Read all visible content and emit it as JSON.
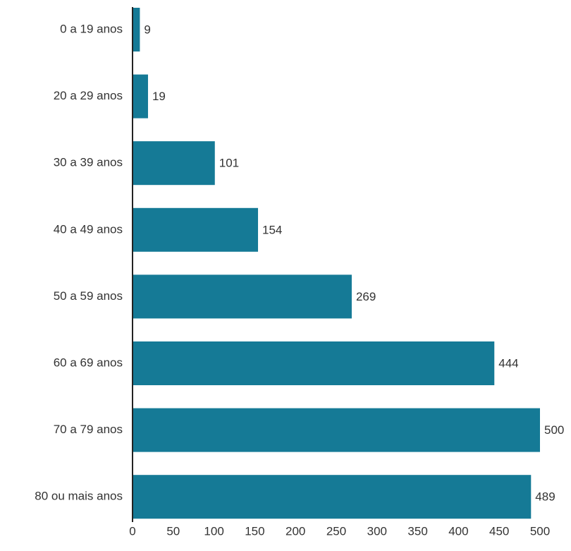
{
  "chart_data": {
    "type": "bar",
    "orientation": "horizontal",
    "categories": [
      "0 a 19 anos",
      "20 a 29 anos",
      "30 a 39 anos",
      "40 a 49 anos",
      "50 a 59 anos",
      "60 a 69 anos",
      "70 a 79 anos",
      "80 ou mais anos"
    ],
    "values": [
      9,
      19,
      101,
      154,
      269,
      444,
      500,
      489
    ],
    "data_labels": [
      "9",
      "19",
      "101",
      "154",
      "269",
      "444",
      "500",
      "489"
    ],
    "x_ticks": [
      "0",
      "50",
      "100",
      "150",
      "200",
      "250",
      "300",
      "350",
      "400",
      "450",
      "500"
    ],
    "xlim": [
      0,
      500
    ],
    "grid": false,
    "bar_color": "#157a96",
    "axis_color": "#222222",
    "text_color": "#333333"
  }
}
